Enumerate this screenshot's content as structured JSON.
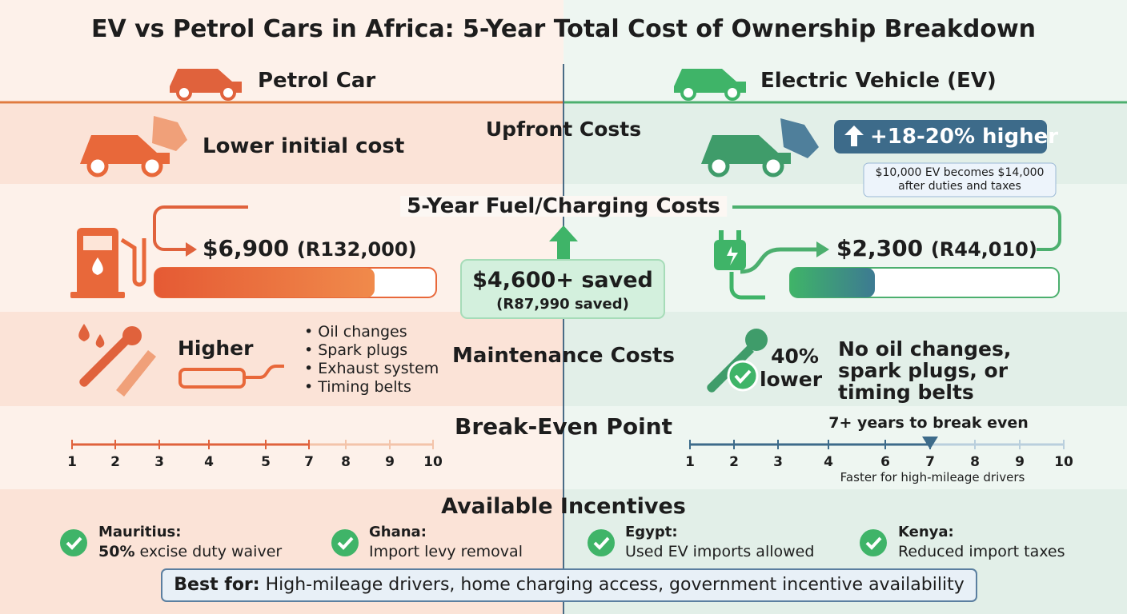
{
  "title": "EV vs Petrol Cars in Africa: 5-Year Total Cost of Ownership Breakdown",
  "petrol": {
    "label": "Petrol Car",
    "upfront": "Lower initial cost",
    "fuel": "$6,900",
    "fuel_rand": "(R132,000)",
    "maintenance": "Higher",
    "maintenance_items": [
      "Oil changes",
      "Spark plugs",
      "Exhaust system",
      "Timing belts"
    ],
    "breakeven_ticks": [
      1,
      2,
      3,
      4,
      5,
      7,
      8,
      9,
      10
    ]
  },
  "ev": {
    "label": "Electric Vehicle (EV)",
    "upfront_badge": "+18-20% higher",
    "upfront_note": "$10,000 EV becomes $14,000 after duties and taxes",
    "fuel": "$2,300",
    "fuel_rand": "(R44,010)",
    "maintenance_pct": "40%",
    "maintenance_word": "lower",
    "maintenance_note": "No oil changes, spark plugs, or timing belts",
    "breakeven_label": "7+ years to break even",
    "breakeven_note": "Faster for high-mileage drivers",
    "breakeven_ticks": [
      1,
      2,
      3,
      4,
      6,
      7,
      8,
      9,
      10
    ]
  },
  "sections": {
    "upfront": "Upfront Costs",
    "fuel": "5-Year Fuel/Charging Costs",
    "maintenance": "Maintenance Costs",
    "breakeven": "Break-Even Point",
    "incentives": "Available Incentives"
  },
  "savings": {
    "usd": "$4,600+ saved",
    "rand": "(R87,990 saved)"
  },
  "incentives": [
    {
      "country": "Mauritius:",
      "highlight": "50%",
      "text": "excise duty waiver"
    },
    {
      "country": "Ghana:",
      "text": "Import levy removal"
    },
    {
      "country": "Egypt:",
      "text": "Used EV imports allowed"
    },
    {
      "country": "Kenya:",
      "text": "Reduced import taxes"
    }
  ],
  "best_for": {
    "label": "Best for:",
    "text": "High-mileage drivers, home charging access, government incentive availability"
  }
}
